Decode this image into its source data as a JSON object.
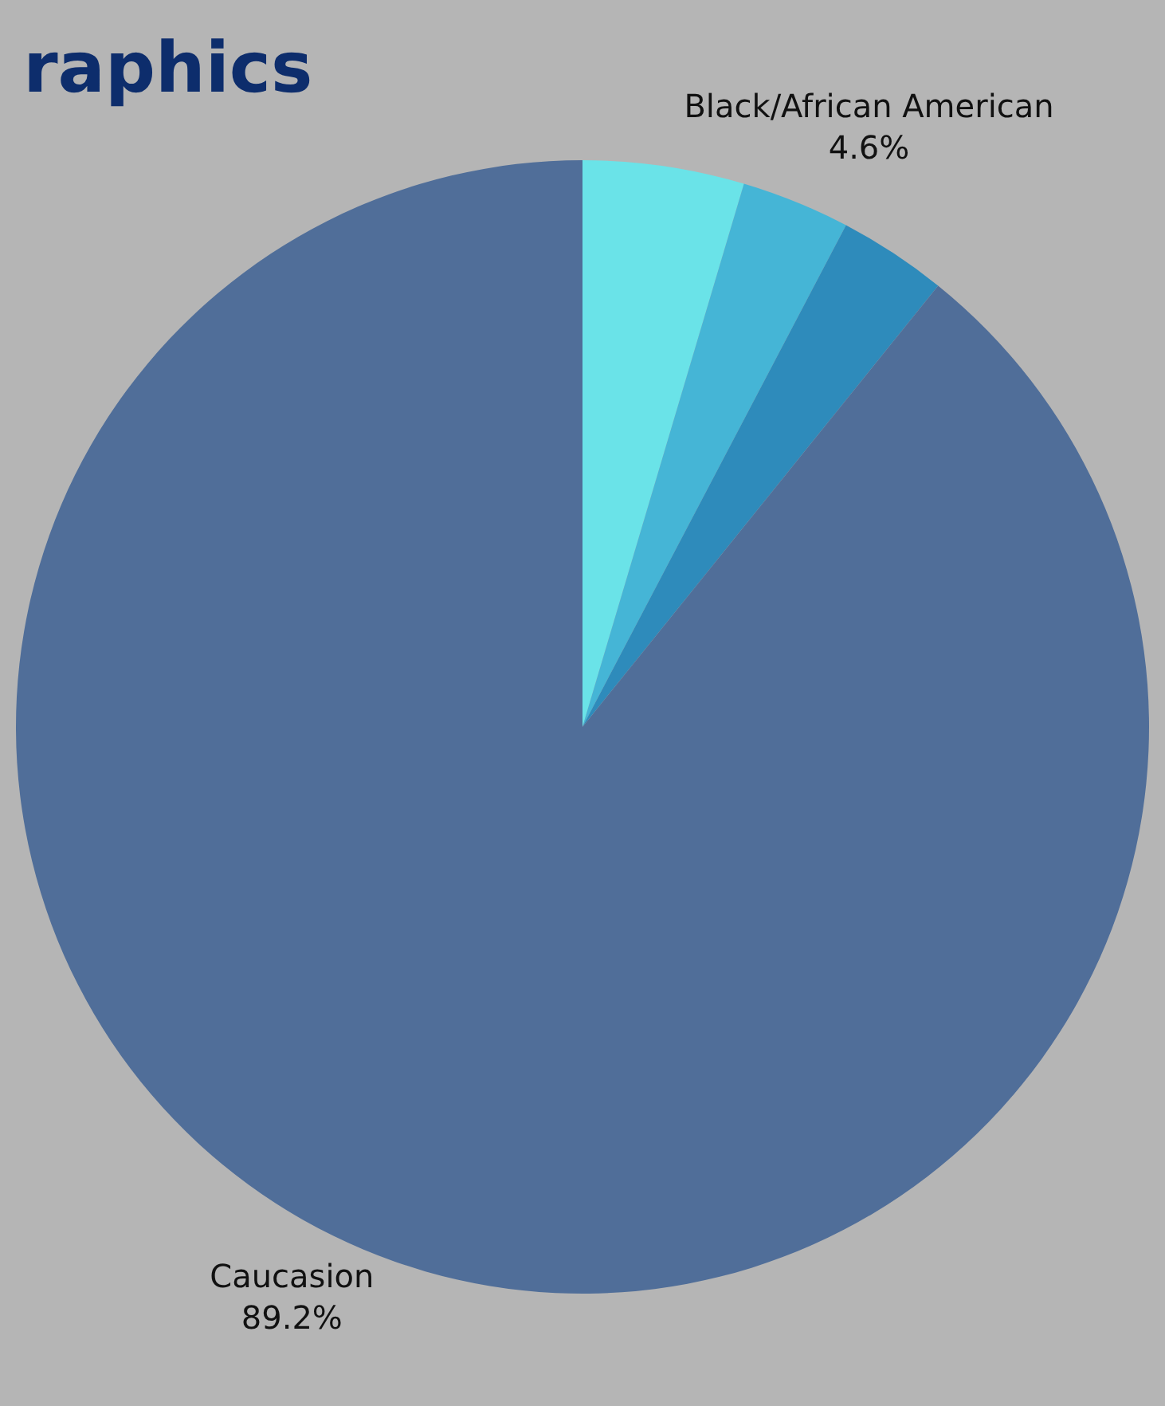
{
  "chart_data": {
    "type": "pie",
    "title": "raphics",
    "categories": [
      "Black/African American",
      null,
      null,
      "Caucasion"
    ],
    "values": [
      4.6,
      3.1,
      3.1,
      89.2
    ],
    "colors": [
      "#6ae3e8",
      "#45b5d6",
      "#2e8bbb",
      "#506e99"
    ],
    "value_labels": [
      "4.6%",
      null,
      null,
      "89.2%"
    ],
    "legend": false
  }
}
